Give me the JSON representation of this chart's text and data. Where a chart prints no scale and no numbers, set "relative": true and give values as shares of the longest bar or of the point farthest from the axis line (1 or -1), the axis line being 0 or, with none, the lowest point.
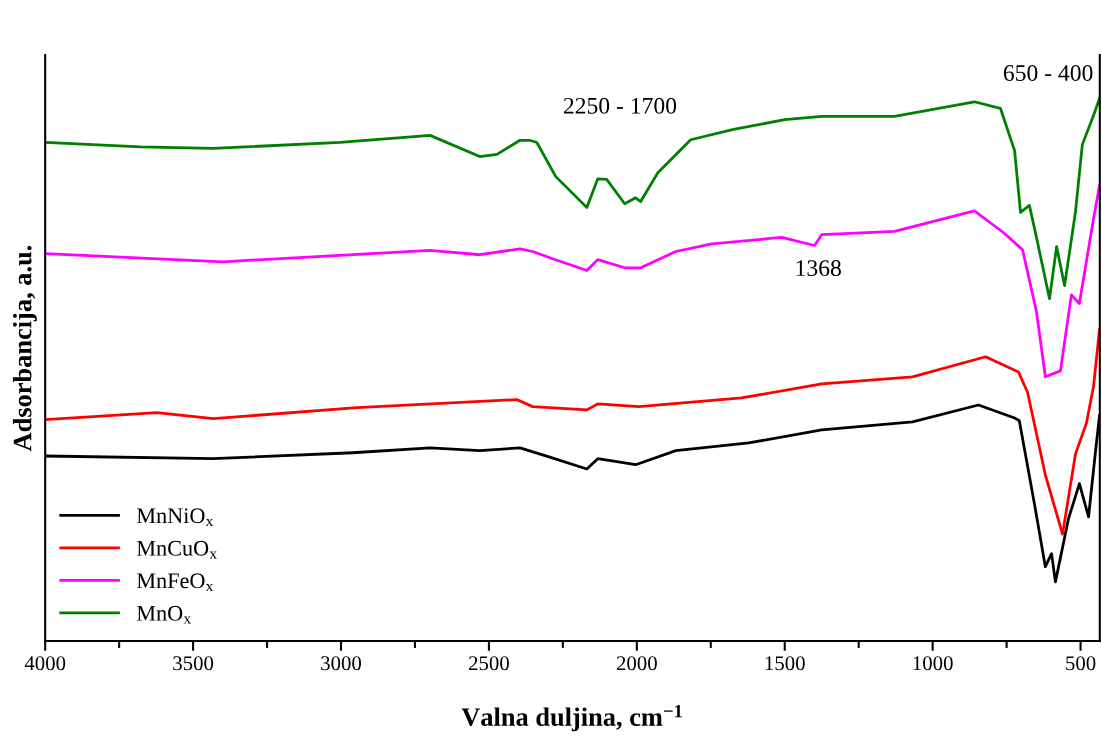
{
  "chart_data": {
    "type": "line",
    "relative": true,
    "xlabel": "Valna duljina, cm$^{−1}$",
    "ylabel": "Adsorbancija, a.u.",
    "xlim": [
      4000,
      435
    ],
    "xticks": [
      4000,
      {
        "value": 3750,
        "label": null
      },
      3500,
      {
        "value": 3250,
        "label": null
      },
      3000,
      {
        "value": 2750,
        "label": null
      },
      2500,
      {
        "value": 2250,
        "label": null
      },
      2000,
      {
        "value": 1750,
        "label": null
      },
      1500,
      {
        "value": 1250,
        "label": null
      },
      1000,
      {
        "value": 750,
        "label": null
      },
      500
    ],
    "legend": "bottom left",
    "grid": false,
    "line_style": "solid",
    "marker": "none",
    "annotations": [
      "2250 - 1700",
      "1368",
      "650 - 400"
    ],
    "series": [
      {
        "name": "MnNiO$_{x}$",
        "color": "#000000",
        "x": [
          4000,
          3432,
          2960,
          2699,
          2531,
          2395,
          2294,
          2169,
          2132,
          2004,
          1868,
          1622,
          1375,
          1068,
          845,
          723,
          707,
          656,
          619,
          598,
          585,
          541,
          504,
          473,
          450,
          436
        ],
        "values": [
          0.341,
          0.336,
          0.347,
          0.356,
          0.351,
          0.356,
          0.339,
          0.317,
          0.336,
          0.325,
          0.351,
          0.365,
          0.389,
          0.404,
          0.435,
          0.411,
          0.406,
          0.253,
          0.137,
          0.161,
          0.109,
          0.225,
          0.29,
          0.229,
          0.347,
          0.415
        ]
      },
      {
        "name": "MnCuO$_{x}$",
        "color": "#ff0000",
        "x": [
          4000,
          3622,
          3432,
          2946,
          2406,
          2352,
          2169,
          2132,
          1993,
          1646,
          1375,
          1068,
          821,
          710,
          679,
          619,
          561,
          517,
          480,
          456,
          436
        ],
        "values": [
          0.408,
          0.421,
          0.41,
          0.43,
          0.445,
          0.432,
          0.426,
          0.437,
          0.432,
          0.448,
          0.474,
          0.487,
          0.524,
          0.496,
          0.458,
          0.306,
          0.197,
          0.345,
          0.402,
          0.47,
          0.574
        ]
      },
      {
        "name": "MnFeO$_{x}$",
        "color": "#ff00ff",
        "x": [
          4000,
          3399,
          2699,
          2531,
          2395,
          2352,
          2287,
          2169,
          2132,
          2041,
          1987,
          1868,
          1747,
          1510,
          1399,
          1375,
          1129,
          859,
          761,
          696,
          649,
          619,
          568,
          531,
          504,
          456,
          436
        ],
        "values": [
          0.714,
          0.699,
          0.72,
          0.712,
          0.723,
          0.718,
          0.705,
          0.683,
          0.703,
          0.688,
          0.688,
          0.718,
          0.732,
          0.744,
          0.729,
          0.749,
          0.755,
          0.793,
          0.753,
          0.721,
          0.607,
          0.487,
          0.498,
          0.638,
          0.622,
          0.779,
          0.839
        ]
      },
      {
        "name": "MnO$_{x}$",
        "color": "#008000",
        "x": [
          4000,
          3679,
          3432,
          3003,
          2699,
          2531,
          2473,
          2395,
          2362,
          2338,
          2274,
          2169,
          2132,
          2102,
          2041,
          2004,
          1987,
          1929,
          1818,
          1673,
          1500,
          1375,
          1129,
          859,
          771,
          723,
          703,
          673,
          649,
          605,
          581,
          554,
          517,
          494,
          456,
          436
        ],
        "values": [
          0.919,
          0.911,
          0.908,
          0.919,
          0.932,
          0.893,
          0.897,
          0.923,
          0.923,
          0.919,
          0.856,
          0.799,
          0.852,
          0.851,
          0.806,
          0.817,
          0.81,
          0.863,
          0.924,
          0.943,
          0.961,
          0.967,
          0.967,
          0.994,
          0.982,
          0.904,
          0.79,
          0.803,
          0.744,
          0.631,
          0.727,
          0.655,
          0.792,
          0.915,
          0.969,
          1.0
        ]
      }
    ]
  }
}
